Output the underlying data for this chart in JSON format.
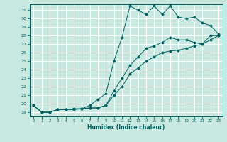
{
  "title": "",
  "xlabel": "Humidex (Indice chaleur)",
  "ylabel": "",
  "xlim": [
    -0.5,
    23.5
  ],
  "ylim": [
    18.5,
    31.7
  ],
  "yticks": [
    19,
    20,
    21,
    22,
    23,
    24,
    25,
    26,
    27,
    28,
    29,
    30,
    31
  ],
  "xticks": [
    0,
    1,
    2,
    3,
    4,
    5,
    6,
    7,
    8,
    9,
    10,
    11,
    12,
    13,
    14,
    15,
    16,
    17,
    18,
    19,
    20,
    21,
    22,
    23
  ],
  "bg_color": "#c8e8e0",
  "grid_color": "#ffffff",
  "line_color": "#006060",
  "line1_x": [
    0,
    1,
    2,
    3,
    4,
    5,
    6,
    7,
    8,
    9,
    10,
    11,
    12,
    13,
    14,
    15,
    16,
    17,
    18,
    19,
    20,
    21,
    22,
    23
  ],
  "line1_y": [
    19.8,
    19.0,
    19.0,
    19.3,
    19.3,
    19.3,
    19.4,
    19.8,
    20.5,
    21.2,
    25.0,
    27.8,
    31.5,
    31.0,
    30.5,
    31.5,
    30.5,
    31.5,
    30.2,
    30.0,
    30.2,
    29.5,
    29.2,
    28.2
  ],
  "line2_x": [
    0,
    1,
    2,
    3,
    4,
    5,
    6,
    7,
    8,
    9,
    10,
    11,
    12,
    13,
    14,
    15,
    16,
    17,
    18,
    19,
    20,
    21,
    22,
    23
  ],
  "line2_y": [
    19.8,
    19.0,
    19.0,
    19.3,
    19.3,
    19.4,
    19.4,
    19.5,
    19.5,
    19.8,
    21.5,
    23.0,
    24.5,
    25.5,
    26.5,
    26.8,
    27.2,
    27.8,
    27.5,
    27.5,
    27.2,
    27.0,
    28.0,
    28.0
  ],
  "line3_x": [
    0,
    1,
    2,
    3,
    4,
    5,
    6,
    7,
    8,
    9,
    10,
    11,
    12,
    13,
    14,
    15,
    16,
    17,
    18,
    19,
    20,
    21,
    22,
    23
  ],
  "line3_y": [
    19.8,
    19.0,
    19.0,
    19.3,
    19.3,
    19.4,
    19.4,
    19.5,
    19.5,
    19.8,
    21.0,
    22.0,
    23.5,
    24.2,
    25.0,
    25.5,
    26.0,
    26.2,
    26.3,
    26.5,
    26.8,
    27.0,
    27.5,
    28.0
  ]
}
